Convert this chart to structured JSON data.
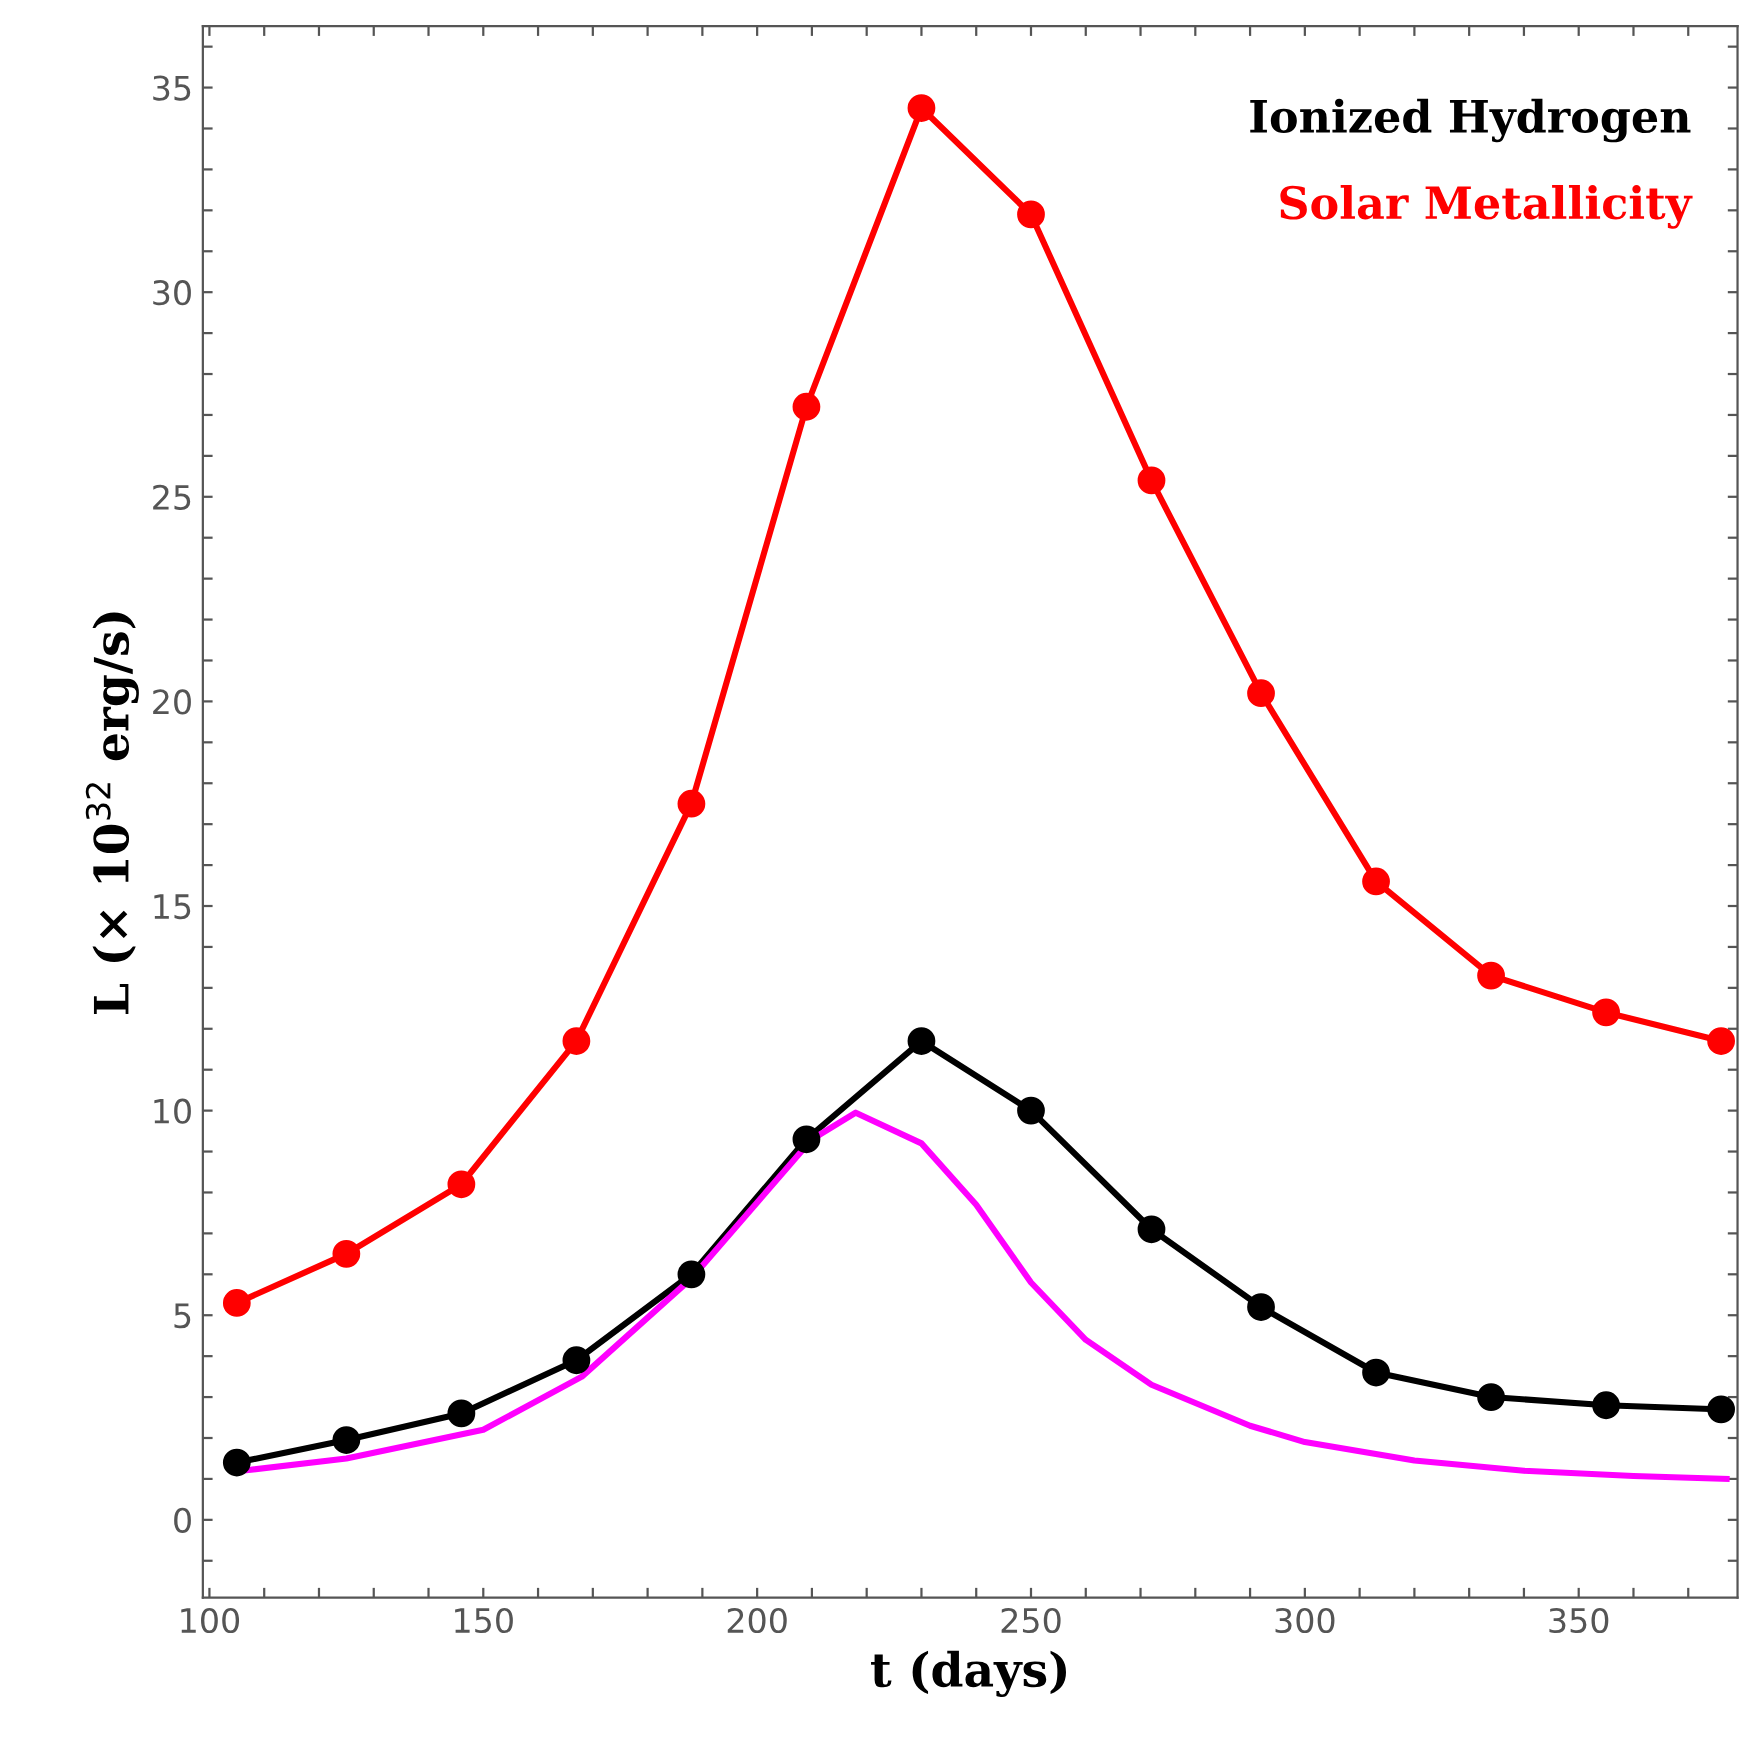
{
  "chart_data": {
    "type": "line",
    "xlabel": "t (days)",
    "ylabel": "L (× 10$^{32}$ erg/s)",
    "xlim": [
      98.8,
      379
    ],
    "ylim": [
      -1.9,
      36.5
    ],
    "xticks": [
      100,
      {
        "value": 110,
        "label": null
      },
      {
        "value": 120,
        "label": null
      },
      {
        "value": 130,
        "label": null
      },
      {
        "value": 140,
        "label": null
      },
      150,
      {
        "value": 160,
        "label": null
      },
      {
        "value": 170,
        "label": null
      },
      {
        "value": 180,
        "label": null
      },
      {
        "value": 190,
        "label": null
      },
      200,
      {
        "value": 210,
        "label": null
      },
      {
        "value": 220,
        "label": null
      },
      {
        "value": 230,
        "label": null
      },
      {
        "value": 240,
        "label": null
      },
      250,
      {
        "value": 260,
        "label": null
      },
      {
        "value": 270,
        "label": null
      },
      {
        "value": 280,
        "label": null
      },
      {
        "value": 290,
        "label": null
      },
      300,
      {
        "value": 310,
        "label": null
      },
      {
        "value": 320,
        "label": null
      },
      {
        "value": 330,
        "label": null
      },
      {
        "value": 340,
        "label": null
      },
      350,
      {
        "value": 360,
        "label": null
      },
      {
        "value": 370,
        "label": null
      }
    ],
    "yticks": [
      {
        "value": -1,
        "label": null
      },
      0,
      {
        "value": 1,
        "label": null
      },
      {
        "value": 2,
        "label": null
      },
      {
        "value": 3,
        "label": null
      },
      {
        "value": 4,
        "label": null
      },
      5,
      {
        "value": 6,
        "label": null
      },
      {
        "value": 7,
        "label": null
      },
      {
        "value": 8,
        "label": null
      },
      {
        "value": 9,
        "label": null
      },
      10,
      {
        "value": 11,
        "label": null
      },
      {
        "value": 12,
        "label": null
      },
      {
        "value": 13,
        "label": null
      },
      {
        "value": 14,
        "label": null
      },
      15,
      {
        "value": 16,
        "label": null
      },
      {
        "value": 17,
        "label": null
      },
      {
        "value": 18,
        "label": null
      },
      {
        "value": 19,
        "label": null
      },
      20,
      {
        "value": 21,
        "label": null
      },
      {
        "value": 22,
        "label": null
      },
      {
        "value": 23,
        "label": null
      },
      {
        "value": 24,
        "label": null
      },
      25,
      {
        "value": 26,
        "label": null
      },
      {
        "value": 27,
        "label": null
      },
      {
        "value": 28,
        "label": null
      },
      {
        "value": 29,
        "label": null
      },
      30,
      {
        "value": 31,
        "label": null
      },
      {
        "value": 32,
        "label": null
      },
      {
        "value": 33,
        "label": null
      },
      {
        "value": 34,
        "label": null
      },
      35,
      {
        "value": 36,
        "label": null
      }
    ],
    "grid": false,
    "legend": "top right",
    "series": [
      {
        "name": "Ionized Hydrogen",
        "color": "#000000",
        "marker": "circle",
        "x": [
          105,
          125,
          146,
          167,
          188,
          209,
          230,
          250,
          272,
          292,
          313,
          334,
          355,
          376
        ],
        "values": [
          1.4,
          1.95,
          2.6,
          3.9,
          6.0,
          9.3,
          11.7,
          10.0,
          7.1,
          5.2,
          3.6,
          3.0,
          2.8,
          2.7
        ]
      },
      {
        "name": "Solar Metallicity",
        "color": "#ff0000",
        "marker": "circle",
        "x": [
          105,
          125,
          146,
          167,
          188,
          209,
          230,
          250,
          272,
          292,
          313,
          334,
          355,
          376
        ],
        "values": [
          5.3,
          6.5,
          8.2,
          11.7,
          17.5,
          27.2,
          34.5,
          31.9,
          25.4,
          20.2,
          15.6,
          13.3,
          12.4,
          11.7
        ]
      },
      {
        "color": "#ff00ff",
        "marker": "none",
        "x": [
          106,
          125,
          150,
          168,
          188,
          210,
          218,
          230,
          240,
          250,
          260,
          272,
          290,
          300,
          320,
          340,
          360,
          377
        ],
        "values": [
          1.2,
          1.5,
          2.2,
          3.5,
          5.9,
          9.3,
          9.95,
          9.2,
          7.7,
          5.8,
          4.4,
          3.3,
          2.3,
          1.9,
          1.45,
          1.2,
          1.07,
          1.0
        ]
      }
    ]
  }
}
